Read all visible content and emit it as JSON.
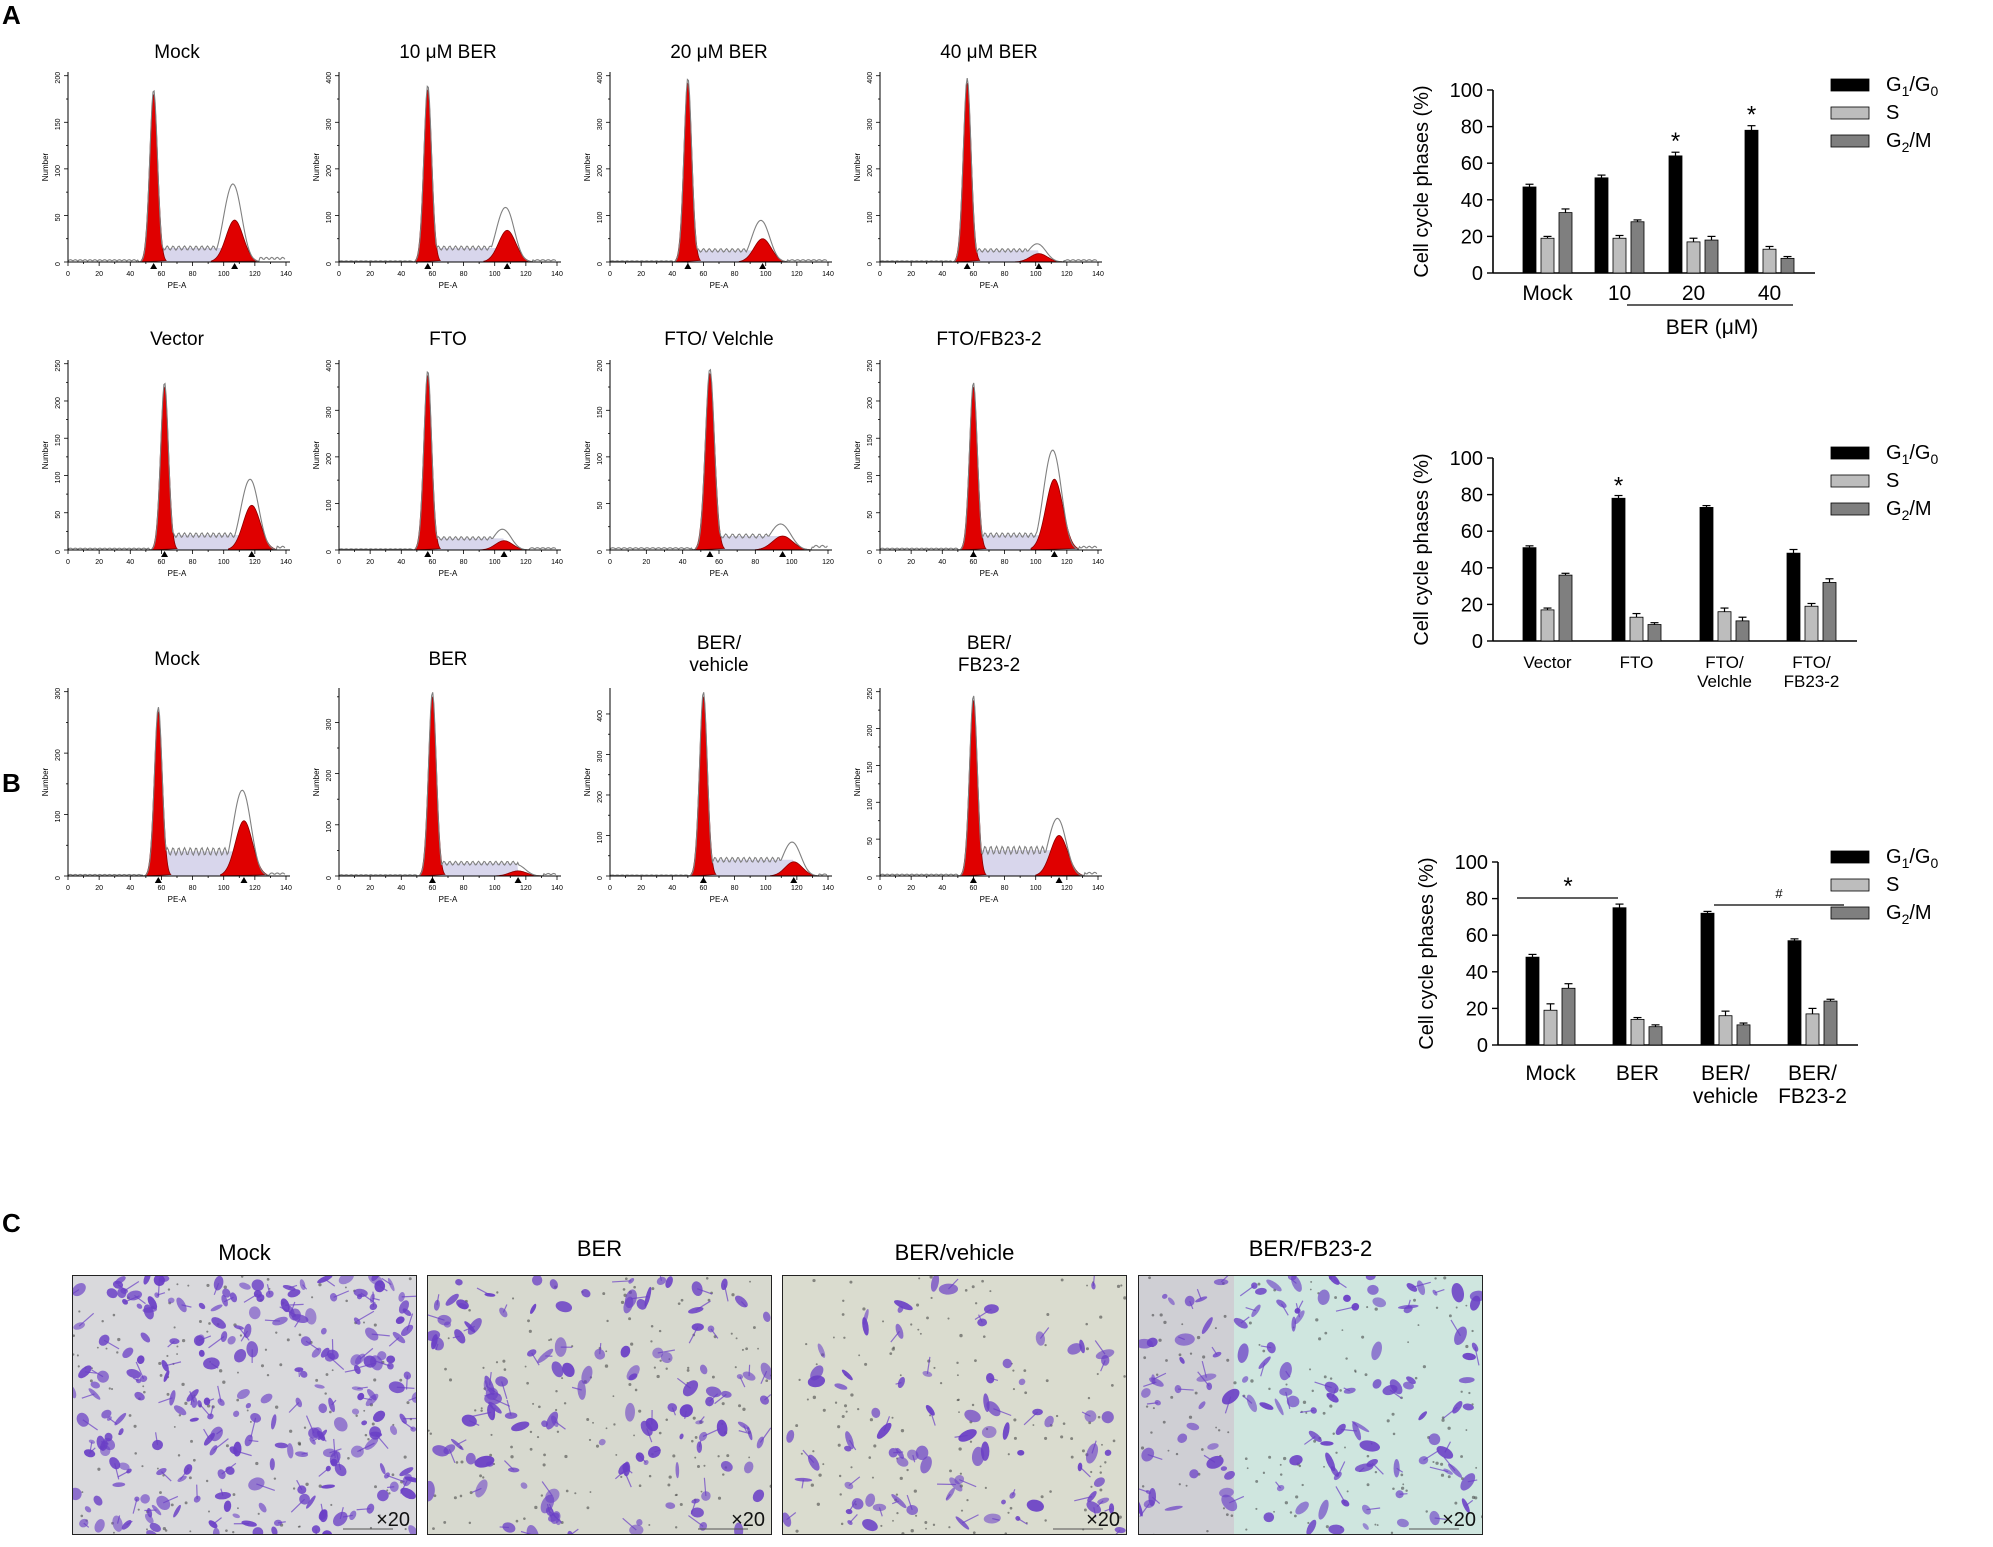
{
  "panel_labels": {
    "a": "A",
    "b": "B",
    "c": "C"
  },
  "histogram_axis": {
    "xlabel": "PE-A",
    "ylabel": "Number"
  },
  "histogram_colors": {
    "fill": "#e00000",
    "envelope": "#d8d6ec",
    "outline": "#808080"
  },
  "histograms": [
    {
      "title": "Mock",
      "xmax": 140,
      "ymax": 200,
      "g1": 55,
      "g2": 107,
      "peak1": 185,
      "peak2": 75,
      "fit2": 45,
      "sPhase": 15
    },
    {
      "title": "10 μM BER",
      "xmax": 140,
      "ymax": 400,
      "g1": 57,
      "g2": 108,
      "peak1": 380,
      "peak2": 105,
      "fit2": 68,
      "sPhase": 30
    },
    {
      "title": "20 μM BER",
      "xmax": 140,
      "ymax": 400,
      "g1": 50,
      "g2": 98,
      "peak1": 395,
      "peak2": 80,
      "fit2": 50,
      "sPhase": 25
    },
    {
      "title": "40 μM BER",
      "xmax": 140,
      "ymax": 400,
      "g1": 56,
      "g2": 102,
      "peak1": 395,
      "peak2": 35,
      "fit2": 18,
      "sPhase": 25
    },
    {
      "title": "Vector",
      "xmax": 140,
      "ymax": 250,
      "g1": 62,
      "g2": 118,
      "peak1": 225,
      "peak2": 85,
      "fit2": 60,
      "sPhase": 20
    },
    {
      "title": "FTO",
      "xmax": 140,
      "ymax": 400,
      "g1": 57,
      "g2": 106,
      "peak1": 385,
      "peak2": 40,
      "fit2": 20,
      "sPhase": 25
    },
    {
      "title": "FTO/ Velchle",
      "xmax": 120,
      "ymax": 200,
      "g1": 55,
      "g2": 95,
      "peak1": 195,
      "peak2": 25,
      "fit2": 15,
      "sPhase": 15
    },
    {
      "title": "FTO/FB23-2",
      "xmax": 140,
      "ymax": 250,
      "g1": 60,
      "g2": 112,
      "peak1": 225,
      "peak2": 120,
      "fit2": 95,
      "sPhase": 20
    },
    {
      "title": "Mock",
      "xmax": 140,
      "ymax": 300,
      "g1": 58,
      "g2": 113,
      "peak1": 275,
      "peak2": 125,
      "fit2": 90,
      "sPhase": 40
    },
    {
      "title": "BER",
      "xmax": 140,
      "ymax": 350,
      "g1": 60,
      "g2": 115,
      "peak1": 360,
      "peak2": 20,
      "fit2": 10,
      "sPhase": 25
    },
    {
      "title": "BER/\nvehicle",
      "xmax": 140,
      "ymax": 400,
      "g1": 60,
      "g2": 118,
      "peak1": 455,
      "peak2": 75,
      "fit2": 35,
      "sPhase": 40
    },
    {
      "title": "BER/\nFB23-2",
      "xmax": 140,
      "ymax": 250,
      "g1": 60,
      "g2": 115,
      "peak1": 245,
      "peak2": 70,
      "fit2": 55,
      "sPhase": 35
    }
  ],
  "chart_data": [
    {
      "type": "bar",
      "title": "",
      "ylabel": "Cell cycle phases (%)",
      "xlabel": "BER (μM)",
      "ylim": [
        0,
        100
      ],
      "yticks": [
        0,
        20,
        40,
        60,
        80,
        100
      ],
      "categories": [
        "Mock",
        "10",
        "20",
        "40"
      ],
      "series": [
        {
          "name": "G1/G0",
          "values": [
            47,
            52,
            64,
            78
          ],
          "errors": [
            1.5,
            1.5,
            2,
            2.5
          ]
        },
        {
          "name": "S",
          "values": [
            19,
            19,
            17,
            13
          ],
          "errors": [
            1,
            1.5,
            2,
            1.5
          ]
        },
        {
          "name": "G2/M",
          "values": [
            33,
            28,
            18,
            8
          ],
          "errors": [
            2,
            1,
            2,
            1
          ]
        }
      ],
      "annotations": [
        "*",
        "*"
      ]
    },
    {
      "type": "bar",
      "title": "",
      "ylabel": "Cell cycle phases (%)",
      "ylim": [
        0,
        100
      ],
      "yticks": [
        0,
        20,
        40,
        60,
        80,
        100
      ],
      "categories": [
        "Vector",
        "FTO",
        "FTO/\nVelchle",
        "FTO/\nFB23-2"
      ],
      "series": [
        {
          "name": "G1/G0",
          "values": [
            51,
            78,
            73,
            48
          ],
          "errors": [
            1,
            1.5,
            1,
            2
          ]
        },
        {
          "name": "S",
          "values": [
            17,
            13,
            16,
            19
          ],
          "errors": [
            1,
            2,
            2,
            1.5
          ]
        },
        {
          "name": "G2/M",
          "values": [
            36,
            9,
            11,
            32
          ],
          "errors": [
            1,
            1,
            2,
            2
          ]
        }
      ],
      "annotations": [
        "*"
      ]
    },
    {
      "type": "bar",
      "title": "",
      "ylabel": "Cell cycle phases (%)",
      "ylim": [
        0,
        100
      ],
      "yticks": [
        0,
        20,
        40,
        60,
        80,
        100
      ],
      "categories": [
        "Mock",
        "BER",
        "BER/\nvehicle",
        "BER/\nFB23-2"
      ],
      "series": [
        {
          "name": "G1/G0",
          "values": [
            48,
            75,
            72,
            57
          ],
          "errors": [
            1.5,
            2,
            1,
            1
          ]
        },
        {
          "name": "S",
          "values": [
            19,
            14,
            16,
            17
          ],
          "errors": [
            3.5,
            1,
            2.5,
            3
          ]
        },
        {
          "name": "G2/M",
          "values": [
            31,
            10,
            11,
            24
          ],
          "errors": [
            2.5,
            1,
            1,
            1
          ]
        }
      ],
      "annotations": [
        "*",
        "#"
      ]
    }
  ],
  "legend": {
    "g1": "G1/G0",
    "g1_main": "G",
    "g1_sub": "1",
    "g1_mid": "/G",
    "g1_sub2": "0",
    "s": "S",
    "g2_main": "G",
    "g2_sub": "2",
    "g2_rest": "/M"
  },
  "bar_colors": {
    "g1": "#000000",
    "s": "#bdbdbd",
    "g2": "#7f7f7f"
  },
  "micrographs": [
    {
      "title": "Mock",
      "magnification": "×20",
      "bg": "#d9d9dc",
      "density": "high"
    },
    {
      "title": "BER",
      "magnification": "×20",
      "bg": "#d7d9cf",
      "density": "medium"
    },
    {
      "title": "BER/vehicle",
      "magnification": "×20",
      "bg": "#dadccf",
      "density": "low"
    },
    {
      "title": "BER/FB23-2",
      "magnification": "×20",
      "bg": "#cfe6df",
      "density": "medium"
    }
  ],
  "stain_color": "#6a3fc6"
}
